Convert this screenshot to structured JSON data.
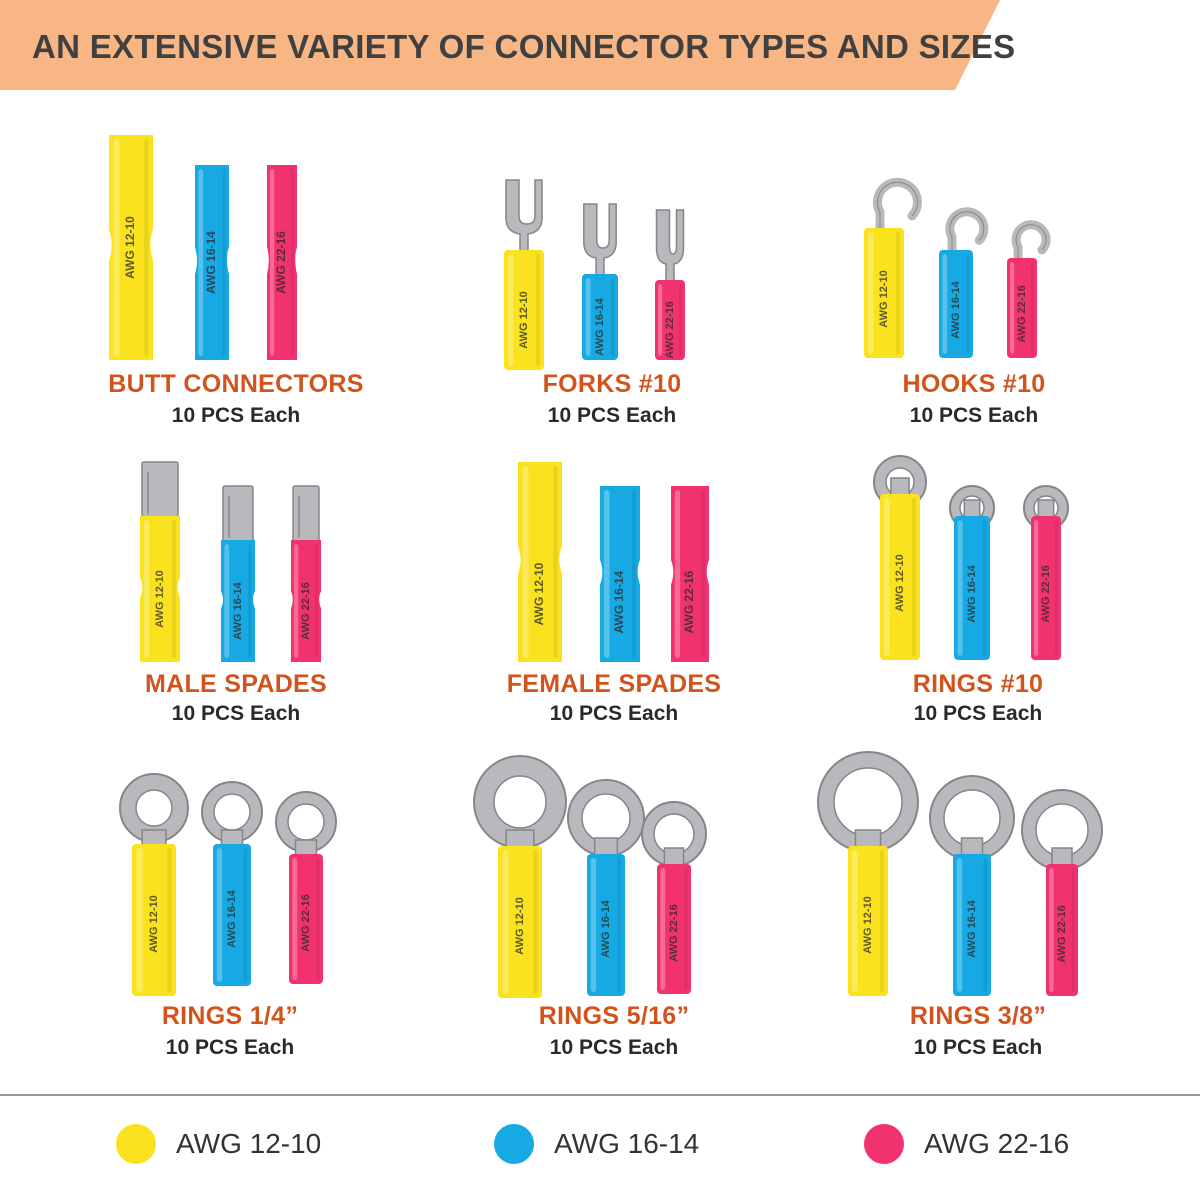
{
  "header": {
    "title": "AN EXTENSIVE VARIETY OF CONNECTOR TYPES AND SIZES",
    "banner_color": "#f7b683"
  },
  "connectors": [
    {
      "name": "BUTT CONNECTORS",
      "count": "10 PCS Each",
      "shape": "butt-connector"
    },
    {
      "name": "FORKS #10",
      "count": "10 PCS Each",
      "shape": "fork-terminal"
    },
    {
      "name": "HOOKS #10",
      "count": "10 PCS Each",
      "shape": "hook-terminal"
    },
    {
      "name": "MALE SPADES",
      "count": "10 PCS Each",
      "shape": "male-spade-terminal"
    },
    {
      "name": "FEMALE SPADES",
      "count": "10 PCS Each",
      "shape": "female-spade-terminal"
    },
    {
      "name": "RINGS #10",
      "count": "10 PCS Each",
      "shape": "ring-terminal"
    },
    {
      "name": "RINGS 1/4”",
      "count": "10 PCS Each",
      "shape": "ring-terminal"
    },
    {
      "name": "RINGS 5/16”",
      "count": "10 PCS Each",
      "shape": "ring-terminal"
    },
    {
      "name": "RINGS 3/8”",
      "count": "10 PCS Each",
      "shape": "ring-terminal"
    }
  ],
  "gauges": [
    {
      "label": "AWG 12-10",
      "print": "AWG 12-10",
      "color": "#fae21e"
    },
    {
      "label": "AWG 16-14",
      "print": "AWG 16-14",
      "color": "#16a9e4"
    },
    {
      "label": "AWG 22-16",
      "print": "AWG 22-16",
      "color": "#f2326e"
    }
  ]
}
